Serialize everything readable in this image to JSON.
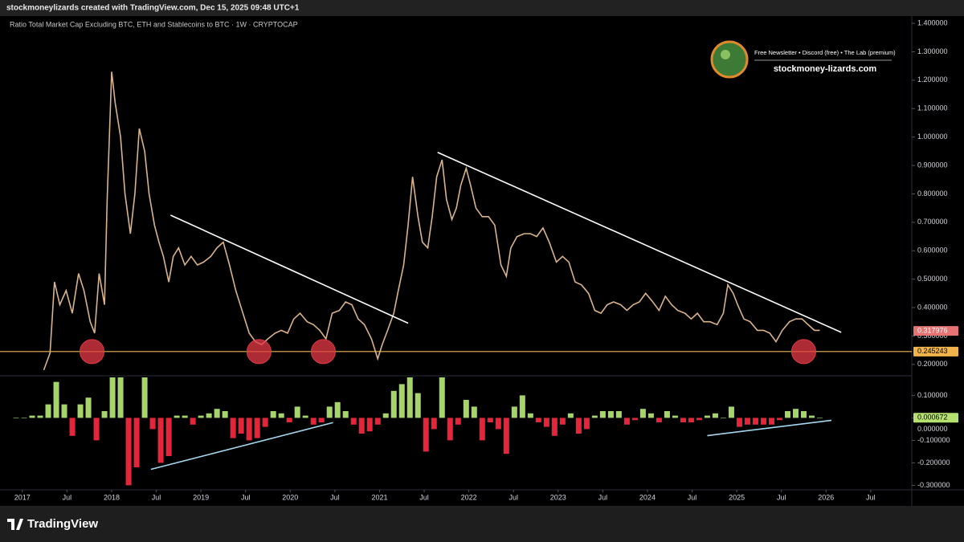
{
  "header": {
    "text": "stockmoneylizards created with TradingView.com, Dec 15, 2025 09:48 UTC+1"
  },
  "branding": {
    "tagline": "Free Newsletter • Discord (free) • The Lab (premium)",
    "site": "stockmoney-lizards.com"
  },
  "footer": {
    "logo": "TradingView"
  },
  "chart_data": [
    {
      "type": "line",
      "title": "Ratio Total Market Cap Excluding BTC, ETH and Stablecoins to BTC · 1W · CRYPTOCAP",
      "color": "#d9b38c",
      "x": [
        2017.24,
        2017.31,
        2017.36,
        2017.42,
        2017.49,
        2017.56,
        2017.63,
        2017.69,
        2017.76,
        2017.81,
        2017.86,
        2017.92,
        2017.95,
        2018.0,
        2018.04,
        2018.1,
        2018.15,
        2018.21,
        2018.26,
        2018.31,
        2018.37,
        2018.42,
        2018.48,
        2018.53,
        2018.58,
        2018.64,
        2018.69,
        2018.75,
        2018.82,
        2018.89,
        2018.96,
        2019.03,
        2019.11,
        2019.18,
        2019.25,
        2019.32,
        2019.39,
        2019.47,
        2019.54,
        2019.61,
        2019.68,
        2019.75,
        2019.83,
        2019.9,
        2019.97,
        2020.04,
        2020.11,
        2020.19,
        2020.26,
        2020.33,
        2020.4,
        2020.47,
        2020.55,
        2020.62,
        2020.69,
        2020.76,
        2020.83,
        2020.91,
        2020.98,
        2021.03,
        2021.09,
        2021.16,
        2021.21,
        2021.27,
        2021.32,
        2021.37,
        2021.43,
        2021.48,
        2021.54,
        2021.59,
        2021.64,
        2021.7,
        2021.75,
        2021.81,
        2021.86,
        2021.91,
        2021.97,
        2022.02,
        2022.08,
        2022.15,
        2022.22,
        2022.29,
        2022.36,
        2022.42,
        2022.47,
        2022.54,
        2022.62,
        2022.69,
        2022.76,
        2022.83,
        2022.9,
        2022.98,
        2023.05,
        2023.12,
        2023.19,
        2023.26,
        2023.34,
        2023.41,
        2023.48,
        2023.55,
        2023.62,
        2023.7,
        2023.77,
        2023.84,
        2023.91,
        2023.98,
        2024.06,
        2024.13,
        2024.2,
        2024.27,
        2024.34,
        2024.42,
        2024.49,
        2024.56,
        2024.63,
        2024.7,
        2024.78,
        2024.85,
        2024.9,
        2024.96,
        2025.01,
        2025.08,
        2025.15,
        2025.23,
        2025.3,
        2025.37,
        2025.44,
        2025.51,
        2025.59,
        2025.66,
        2025.73,
        2025.8,
        2025.87,
        2025.93
      ],
      "values": [
        0.18,
        0.24,
        0.49,
        0.41,
        0.46,
        0.38,
        0.52,
        0.46,
        0.35,
        0.31,
        0.52,
        0.41,
        0.78,
        1.23,
        1.12,
        1.0,
        0.8,
        0.66,
        0.8,
        1.03,
        0.95,
        0.8,
        0.69,
        0.63,
        0.58,
        0.49,
        0.58,
        0.61,
        0.55,
        0.58,
        0.55,
        0.56,
        0.58,
        0.61,
        0.63,
        0.55,
        0.46,
        0.38,
        0.31,
        0.28,
        0.27,
        0.29,
        0.31,
        0.32,
        0.31,
        0.36,
        0.38,
        0.35,
        0.34,
        0.32,
        0.29,
        0.38,
        0.39,
        0.42,
        0.41,
        0.36,
        0.34,
        0.29,
        0.22,
        0.27,
        0.32,
        0.38,
        0.46,
        0.55,
        0.69,
        0.86,
        0.72,
        0.63,
        0.61,
        0.72,
        0.86,
        0.92,
        0.78,
        0.71,
        0.75,
        0.83,
        0.89,
        0.83,
        0.75,
        0.72,
        0.72,
        0.69,
        0.55,
        0.51,
        0.61,
        0.65,
        0.66,
        0.66,
        0.65,
        0.68,
        0.63,
        0.56,
        0.58,
        0.56,
        0.49,
        0.48,
        0.45,
        0.39,
        0.38,
        0.41,
        0.42,
        0.41,
        0.39,
        0.41,
        0.42,
        0.45,
        0.42,
        0.39,
        0.44,
        0.41,
        0.39,
        0.38,
        0.36,
        0.38,
        0.35,
        0.35,
        0.34,
        0.38,
        0.48,
        0.45,
        0.41,
        0.36,
        0.35,
        0.32,
        0.32,
        0.31,
        0.28,
        0.32,
        0.35,
        0.36,
        0.36,
        0.34,
        0.32,
        0.32
      ],
      "xlim": [
        2016.75,
        2026.96
      ],
      "xticks": [
        2017,
        {
          "value": 2017.5,
          "label": "Jul"
        },
        2018,
        {
          "value": 2018.5,
          "label": "Jul"
        },
        2019,
        {
          "value": 2019.5,
          "label": "Jul"
        },
        2020,
        {
          "value": 2020.5,
          "label": "Jul"
        },
        2021,
        {
          "value": 2021.5,
          "label": "Jul"
        },
        2022,
        {
          "value": 2022.5,
          "label": "Jul"
        },
        2023,
        {
          "value": 2023.5,
          "label": "Jul"
        },
        2024,
        {
          "value": 2024.5,
          "label": "Jul"
        },
        2025,
        {
          "value": 2025.5,
          "label": "Jul"
        },
        2026,
        {
          "value": 2026.5,
          "label": "Jul"
        }
      ],
      "ylim": [
        0.16,
        1.42
      ],
      "yticks": [
        {
          "value": 0.2,
          "label": "0.200000"
        },
        {
          "value": 0.3,
          "label": "0.300000"
        },
        {
          "value": 0.4,
          "label": "0.400000"
        },
        {
          "value": 0.5,
          "label": "0.500000"
        },
        {
          "value": 0.6,
          "label": "0.600000"
        },
        {
          "value": 0.7,
          "label": "0.700000"
        },
        {
          "value": 0.8,
          "label": "0.800000"
        },
        {
          "value": 0.9,
          "label": "0.900000"
        },
        {
          "value": 1.0,
          "label": "1.000000"
        },
        {
          "value": 1.1,
          "label": "1.100000"
        },
        {
          "value": 1.2,
          "label": "1.200000"
        },
        {
          "value": 1.3,
          "label": "1.300000"
        },
        {
          "value": 1.4,
          "label": "1.400000"
        }
      ],
      "grid": false,
      "last_value": {
        "value": 0.317976,
        "color": "#e57373"
      },
      "level": {
        "value": 0.245243,
        "color": "#f0b44a"
      },
      "trendline_color": "#ffffff",
      "trendlines": [
        {
          "x": [
            2018.66,
            2021.32
          ],
          "y": [
            0.725,
            0.345
          ]
        },
        {
          "x": [
            2021.65,
            2026.17
          ],
          "y": [
            0.946,
            0.313
          ]
        }
      ],
      "markers": {
        "color": "#e53945",
        "x": [
          2017.78,
          2019.65,
          2020.37,
          2025.75
        ],
        "y": [
          0.245,
          0.245,
          0.245,
          0.245
        ]
      }
    },
    {
      "type": "bar",
      "colors": {
        "positive": "#a5d46a",
        "negative": "#e5263a"
      },
      "x": [
        2016.93,
        2017.02,
        2017.11,
        2017.2,
        2017.29,
        2017.38,
        2017.47,
        2017.56,
        2017.65,
        2017.74,
        2017.83,
        2017.92,
        2018.01,
        2018.1,
        2018.19,
        2018.28,
        2018.37,
        2018.46,
        2018.55,
        2018.64,
        2018.73,
        2018.82,
        2018.91,
        2019.0,
        2019.09,
        2019.18,
        2019.27,
        2019.36,
        2019.45,
        2019.54,
        2019.63,
        2019.72,
        2019.81,
        2019.9,
        2019.99,
        2020.08,
        2020.17,
        2020.26,
        2020.35,
        2020.44,
        2020.53,
        2020.62,
        2020.71,
        2020.8,
        2020.89,
        2020.98,
        2021.07,
        2021.16,
        2021.25,
        2021.34,
        2021.43,
        2021.52,
        2021.61,
        2021.7,
        2021.79,
        2021.88,
        2021.97,
        2022.06,
        2022.15,
        2022.24,
        2022.33,
        2022.42,
        2022.51,
        2022.6,
        2022.69,
        2022.78,
        2022.87,
        2022.96,
        2023.05,
        2023.14,
        2023.23,
        2023.32,
        2023.41,
        2023.5,
        2023.59,
        2023.68,
        2023.77,
        2023.86,
        2023.95,
        2024.04,
        2024.13,
        2024.22,
        2024.31,
        2024.4,
        2024.49,
        2024.58,
        2024.67,
        2024.76,
        2024.85,
        2024.94,
        2025.03,
        2025.12,
        2025.21,
        2025.3,
        2025.39,
        2025.48,
        2025.57,
        2025.66,
        2025.75,
        2025.84,
        2025.93
      ],
      "values": [
        0.0,
        0.0,
        0.01,
        0.01,
        0.06,
        0.16,
        0.06,
        -0.08,
        0.06,
        0.09,
        -0.1,
        0.03,
        0.18,
        0.18,
        -0.3,
        -0.22,
        0.18,
        -0.05,
        -0.2,
        -0.17,
        0.01,
        0.01,
        -0.03,
        0.01,
        0.02,
        0.04,
        0.03,
        -0.09,
        -0.07,
        -0.1,
        -0.09,
        -0.04,
        0.03,
        0.02,
        -0.02,
        0.05,
        0.01,
        -0.03,
        -0.02,
        0.05,
        0.07,
        0.03,
        -0.03,
        -0.07,
        -0.06,
        -0.03,
        0.02,
        0.12,
        0.15,
        0.18,
        0.11,
        -0.15,
        -0.05,
        0.18,
        -0.1,
        -0.03,
        0.08,
        0.05,
        -0.1,
        -0.02,
        -0.05,
        -0.16,
        0.05,
        0.1,
        0.02,
        -0.02,
        -0.04,
        -0.08,
        -0.03,
        0.02,
        -0.07,
        -0.05,
        0.01,
        0.03,
        0.03,
        0.03,
        -0.03,
        -0.01,
        0.04,
        0.02,
        -0.02,
        0.03,
        0.01,
        -0.02,
        -0.02,
        -0.01,
        0.01,
        0.02,
        0.0,
        0.05,
        -0.04,
        -0.03,
        -0.03,
        -0.03,
        -0.03,
        -0.01,
        0.03,
        0.04,
        0.03,
        0.01,
        0.0
      ],
      "ylim": [
        -0.32,
        0.18
      ],
      "yticks": [
        {
          "value": 0.1,
          "label": "0.100000"
        },
        {
          "value": 0,
          "label": "0.000000"
        },
        {
          "value": -0.1,
          "label": "-0.100000"
        },
        {
          "value": -0.2,
          "label": "-0.200000"
        },
        {
          "value": -0.3,
          "label": "-0.300000"
        }
      ],
      "last_value": {
        "value": 0.000672,
        "color": "#b5e26e"
      },
      "trendline_color": "#a8d8f0",
      "trendlines": [
        {
          "x": [
            2018.44,
            2020.48
          ],
          "y": [
            -0.229,
            -0.021
          ]
        },
        {
          "x": [
            2024.67,
            2026.06
          ],
          "y": [
            -0.079,
            -0.011
          ]
        }
      ]
    }
  ]
}
